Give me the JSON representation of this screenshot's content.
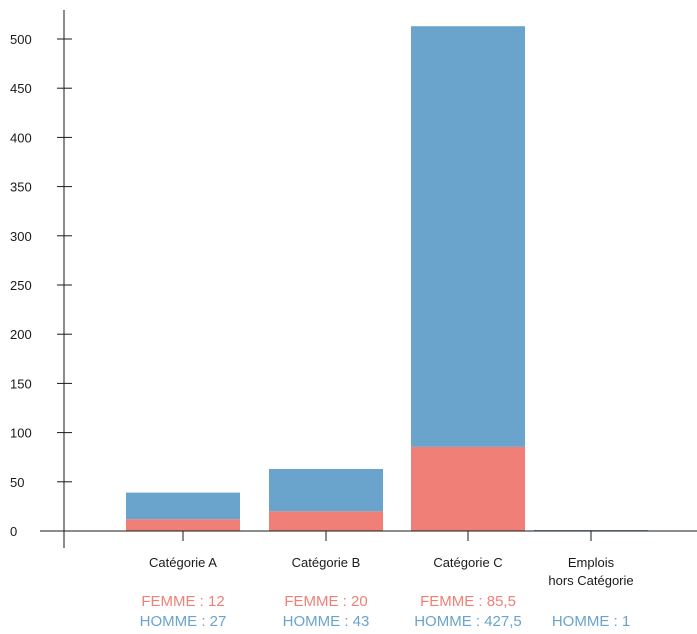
{
  "chart_data": {
    "type": "bar",
    "stacked": true,
    "categories": [
      "Catégorie A",
      "Catégorie B",
      "Catégorie C",
      "Emplois\nhors Catégorie"
    ],
    "series": [
      {
        "name": "FEMME",
        "values": [
          12,
          20,
          85.5,
          0
        ],
        "color": "#f08077"
      },
      {
        "name": "HOMME",
        "values": [
          27,
          43,
          427.5,
          1
        ],
        "color": "#6aa3cc"
      }
    ],
    "ylim": [
      0,
      500
    ],
    "yticks": [
      0,
      50,
      100,
      150,
      200,
      250,
      300,
      350,
      400,
      450,
      500
    ],
    "grid": false,
    "annotations": [
      {
        "femme": "FEMME : 12",
        "homme": "HOMME : 27"
      },
      {
        "femme": "FEMME : 20",
        "homme": "HOMME : 43"
      },
      {
        "femme": "FEMME : 85,5",
        "homme": "HOMME : 427,5"
      },
      {
        "femme": "",
        "homme": "HOMME : 1"
      }
    ]
  }
}
